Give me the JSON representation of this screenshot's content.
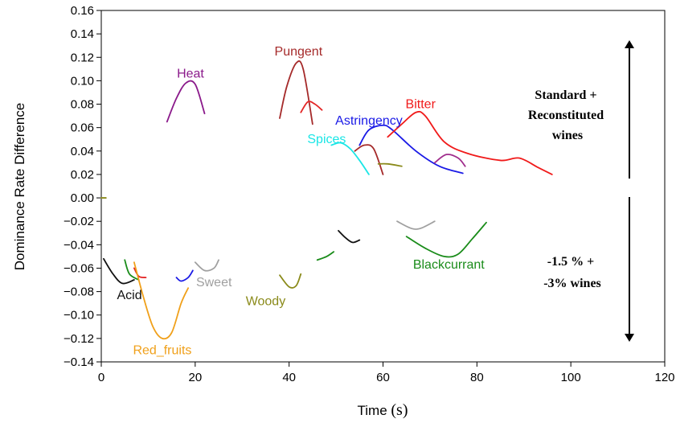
{
  "chart_data": {
    "type": "line",
    "title": "",
    "xlabel": "Time",
    "xlabel_unit": "(s)",
    "ylabel": "Dominance Rate Difference",
    "xlim": [
      0,
      120
    ],
    "ylim": [
      -0.14,
      0.16
    ],
    "x_ticks": [
      "0",
      "20",
      "40",
      "60",
      "80",
      "100",
      "120"
    ],
    "y_ticks": [
      "0.16",
      "0.14",
      "0.12",
      "0.10",
      "0.08",
      "0.06",
      "0.04",
      "0.02",
      "0.00",
      "-0.02",
      "-0.04",
      "-0.06",
      "-0.08",
      "-0.10",
      "-0.12",
      "-0.14"
    ],
    "grid": false,
    "series": [
      {
        "name": "Heat",
        "color": "#8B1A8B",
        "label_at": [
          19,
          0.106
        ],
        "points": [
          [
            14,
            0.065
          ],
          [
            16,
            0.085
          ],
          [
            18,
            0.098
          ],
          [
            20,
            0.097
          ],
          [
            22,
            0.072
          ]
        ]
      },
      {
        "name": "Pungent",
        "color": "#A52A2A",
        "label_at": [
          42,
          0.125
        ],
        "points": [
          [
            38,
            0.068
          ],
          [
            39.5,
            0.095
          ],
          [
            41.5,
            0.115
          ],
          [
            43,
            0.11
          ],
          [
            45,
            0.063
          ]
        ]
      },
      {
        "name": "",
        "color": "#E32626",
        "points": [
          [
            42.5,
            0.073
          ],
          [
            44,
            0.082
          ],
          [
            45.5,
            0.08
          ],
          [
            47,
            0.075
          ]
        ]
      },
      {
        "name": "Astringency",
        "color": "#1A1AE6",
        "label_at": [
          57,
          0.066
        ],
        "points": [
          [
            55,
            0.045
          ],
          [
            57,
            0.058
          ],
          [
            60,
            0.062
          ],
          [
            62,
            0.058
          ],
          [
            67,
            0.04
          ],
          [
            72,
            0.027
          ],
          [
            77,
            0.021
          ]
        ]
      },
      {
        "name": "Bitter",
        "color": "#F01A1A",
        "label_at": [
          68,
          0.08
        ],
        "points": [
          [
            61,
            0.052
          ],
          [
            64,
            0.063
          ],
          [
            67,
            0.073
          ],
          [
            69,
            0.07
          ],
          [
            73,
            0.048
          ],
          [
            78,
            0.038
          ],
          [
            85,
            0.032
          ],
          [
            89,
            0.034
          ],
          [
            93,
            0.026
          ],
          [
            96,
            0.02
          ]
        ]
      },
      {
        "name": "Spices",
        "color": "#1AE6E6",
        "label_at": [
          48,
          0.05
        ],
        "points": [
          [
            49,
            0.045
          ],
          [
            51,
            0.047
          ],
          [
            53,
            0.042
          ],
          [
            55,
            0.032
          ],
          [
            57,
            0.02
          ]
        ]
      },
      {
        "name": "",
        "color": "#A52A2A",
        "points": [
          [
            54,
            0.04
          ],
          [
            56,
            0.045
          ],
          [
            58,
            0.042
          ],
          [
            60,
            0.02
          ]
        ]
      },
      {
        "name": "",
        "color": "#8A8A1A",
        "points": [
          [
            59,
            0.029
          ],
          [
            61,
            0.029
          ],
          [
            64,
            0.027
          ]
        ]
      },
      {
        "name": "",
        "color": "#A02D8C",
        "points": [
          [
            71,
            0.03
          ],
          [
            73.5,
            0.037
          ],
          [
            76,
            0.034
          ],
          [
            77.5,
            0.027
          ]
        ]
      },
      {
        "name": "Acid",
        "color": "#111111",
        "label_at": [
          6,
          -0.083
        ],
        "points": [
          [
            0.5,
            -0.052
          ],
          [
            2.5,
            -0.065
          ],
          [
            4.5,
            -0.073
          ],
          [
            7,
            -0.07
          ]
        ]
      },
      {
        "name": "",
        "color": "#1A8C1A",
        "points": [
          [
            5,
            -0.053
          ],
          [
            6,
            -0.065
          ],
          [
            8,
            -0.07
          ]
        ]
      },
      {
        "name": "",
        "color": "#E32626",
        "points": [
          [
            7,
            -0.06
          ],
          [
            8,
            -0.067
          ],
          [
            9.5,
            -0.068
          ]
        ]
      },
      {
        "name": "Red_fruits",
        "color": "#F0A01A",
        "label_at": [
          13,
          -0.13
        ],
        "points": [
          [
            7,
            -0.055
          ],
          [
            9,
            -0.085
          ],
          [
            11,
            -0.11
          ],
          [
            13,
            -0.12
          ],
          [
            15,
            -0.115
          ],
          [
            17,
            -0.09
          ],
          [
            18.5,
            -0.077
          ]
        ]
      },
      {
        "name": "",
        "color": "#1A1AE6",
        "points": [
          [
            16,
            -0.068
          ],
          [
            17,
            -0.071
          ],
          [
            18.5,
            -0.068
          ],
          [
            19.5,
            -0.062
          ]
        ]
      },
      {
        "name": "Sweet",
        "color": "#A0A0A0",
        "label_at": [
          24,
          -0.072
        ],
        "points": [
          [
            20,
            -0.055
          ],
          [
            22,
            -0.062
          ],
          [
            24,
            -0.06
          ],
          [
            25,
            -0.053
          ]
        ]
      },
      {
        "name": "Woody",
        "color": "#8A8A1A",
        "label_at": [
          35,
          -0.088
        ],
        "points": [
          [
            38,
            -0.066
          ],
          [
            40,
            -0.076
          ],
          [
            41.5,
            -0.075
          ],
          [
            42.5,
            -0.065
          ]
        ]
      },
      {
        "name": "",
        "color": "#1A8C1A",
        "points": [
          [
            46,
            -0.053
          ],
          [
            48,
            -0.05
          ],
          [
            49.5,
            -0.046
          ]
        ]
      },
      {
        "name": "",
        "color": "#111111",
        "points": [
          [
            50.5,
            -0.028
          ],
          [
            52,
            -0.034
          ],
          [
            53.5,
            -0.038
          ],
          [
            55,
            -0.036
          ]
        ]
      },
      {
        "name": "",
        "color": "#A0A0A0",
        "points": [
          [
            63,
            -0.02
          ],
          [
            66,
            -0.026
          ],
          [
            68,
            -0.026
          ],
          [
            71,
            -0.02
          ]
        ]
      },
      {
        "name": "Blackcurrant",
        "color": "#1A8C1A",
        "label_at": [
          74,
          -0.057
        ],
        "points": [
          [
            65,
            -0.033
          ],
          [
            69,
            -0.043
          ],
          [
            73,
            -0.05
          ],
          [
            76,
            -0.048
          ],
          [
            79,
            -0.035
          ],
          [
            82,
            -0.021
          ]
        ]
      },
      {
        "name": "",
        "color": "#8A8A1A",
        "points": [
          [
            0,
            0
          ],
          [
            1,
            0
          ]
        ]
      }
    ],
    "annotations": [
      {
        "lines": [
          "Standard +",
          "Reconstituted",
          "wines"
        ],
        "position": "upper-right"
      },
      {
        "lines": [
          "-1.5 % +",
          "-3% wines"
        ],
        "position": "lower-right"
      }
    ]
  }
}
